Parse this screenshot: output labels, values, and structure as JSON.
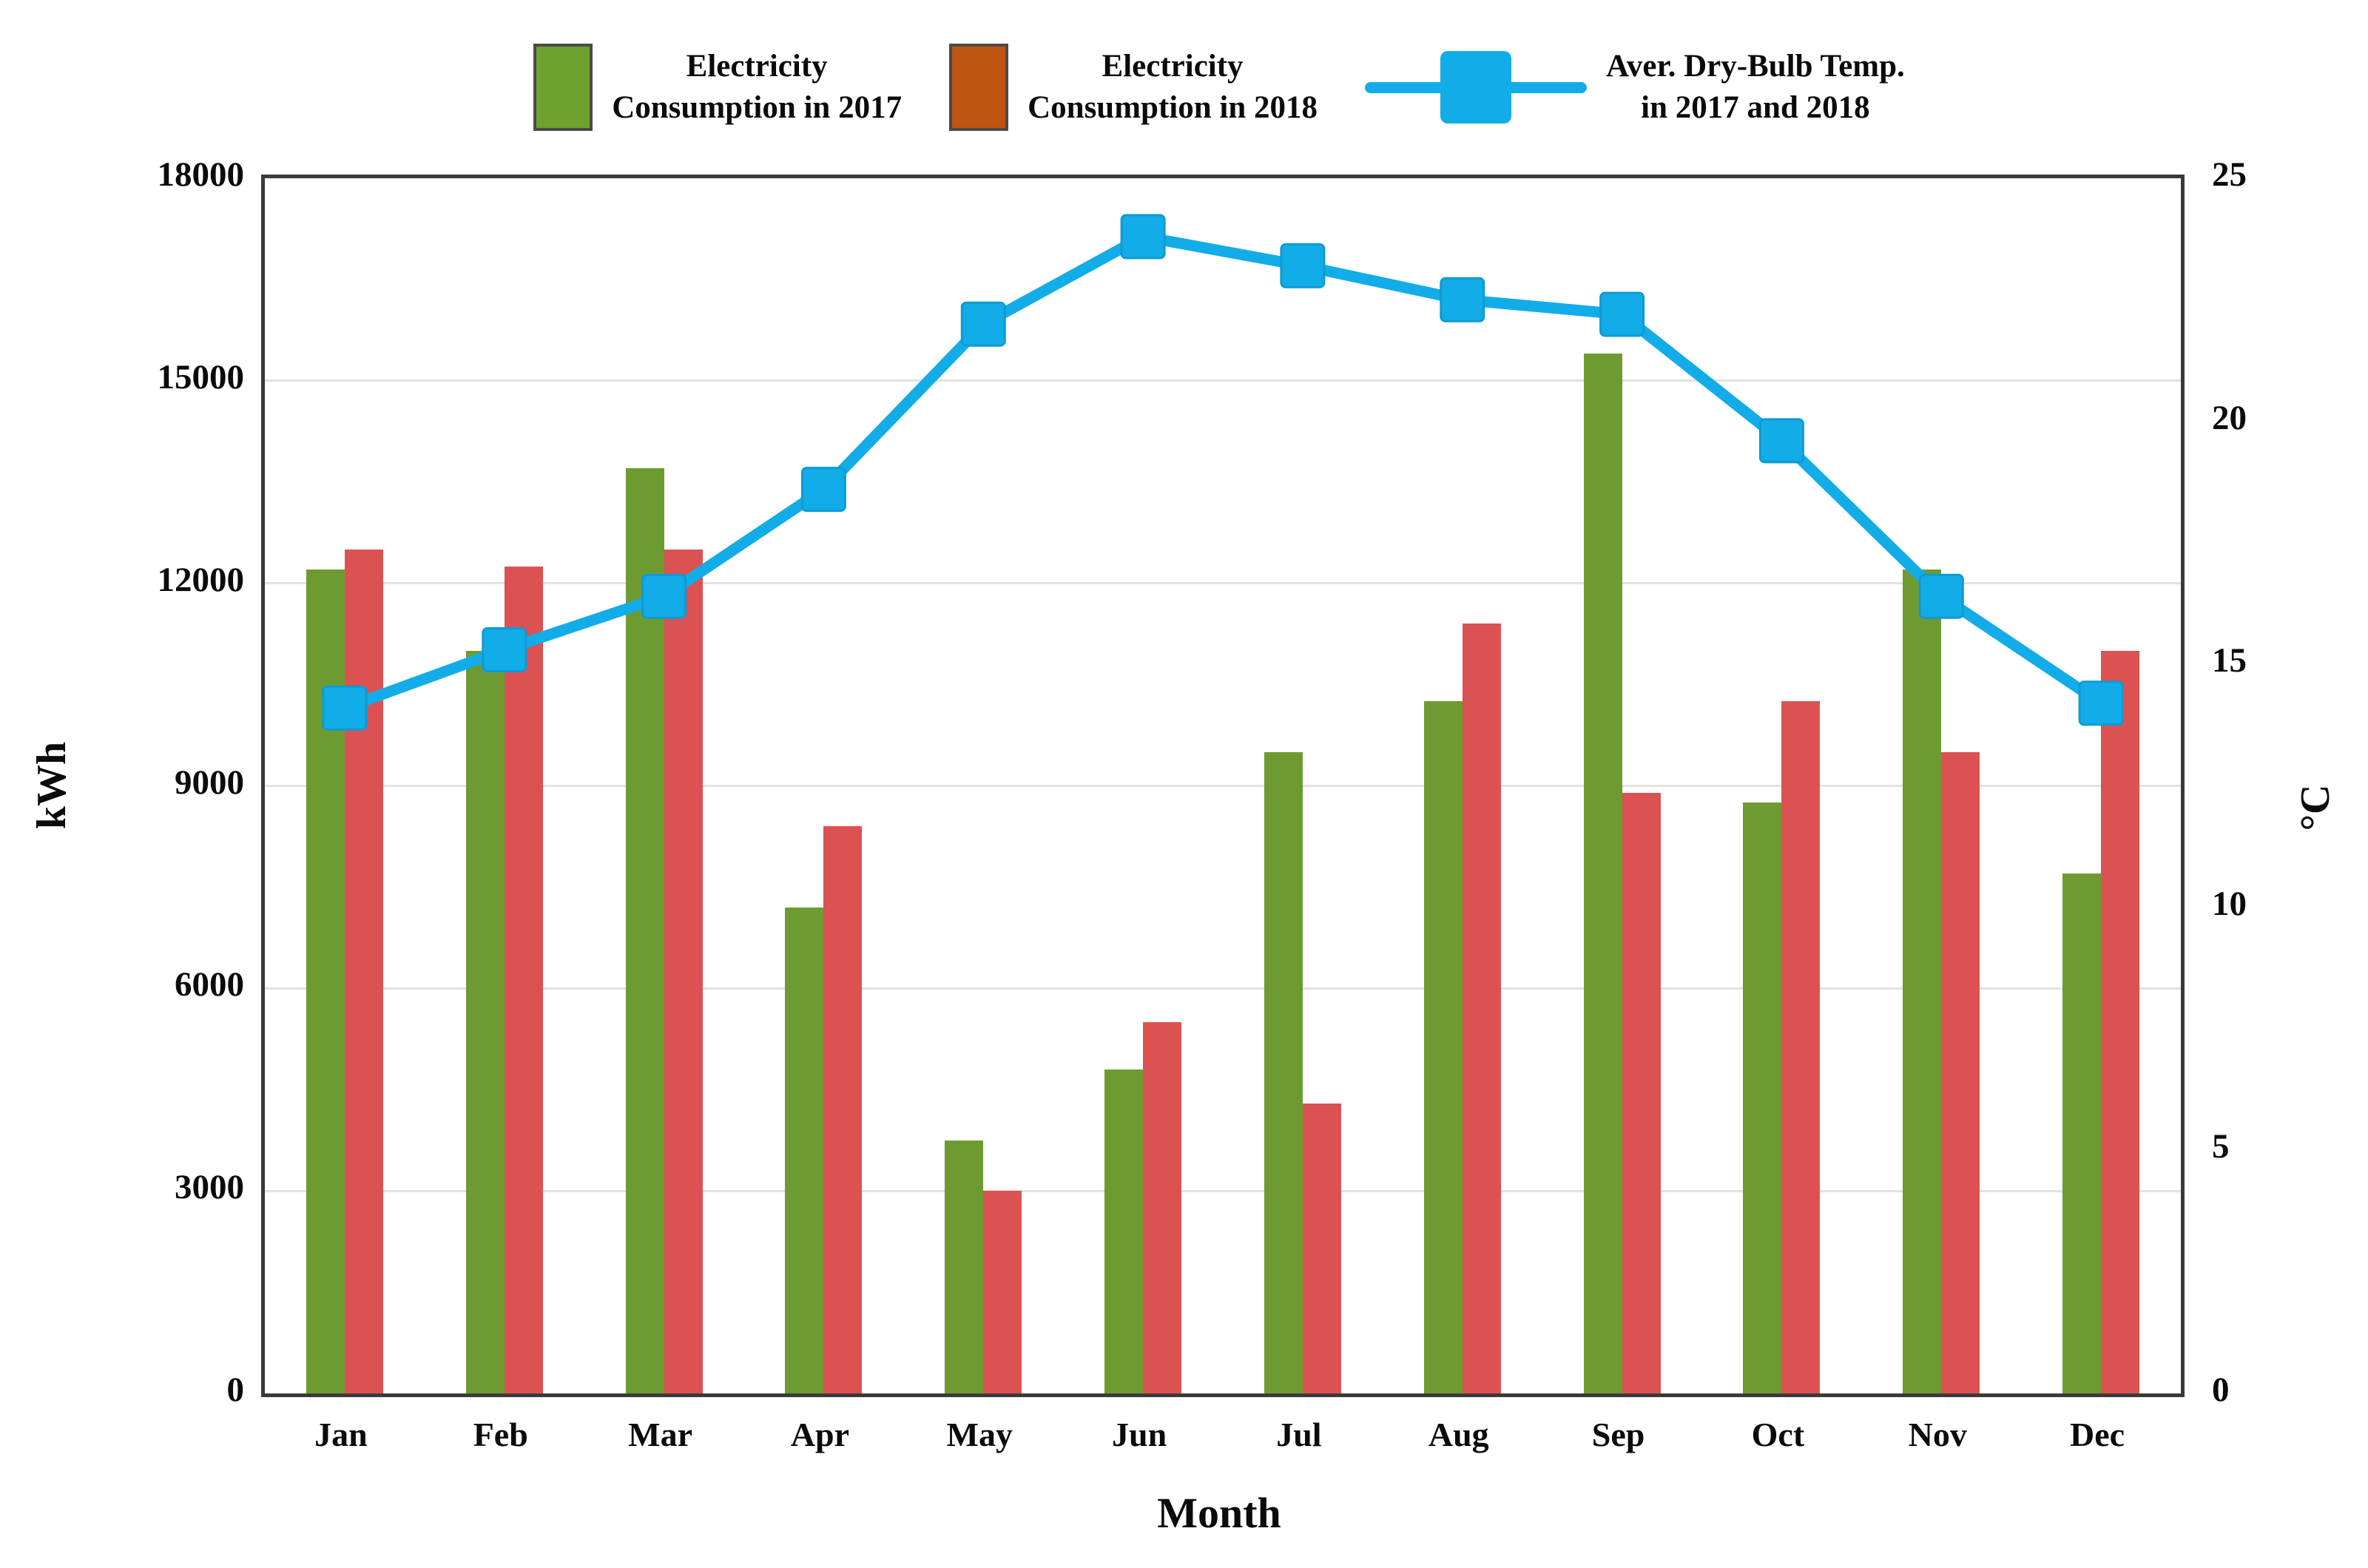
{
  "legend": {
    "items": [
      {
        "label_line1": "Electricity",
        "label_line2": "Consumption in 2017",
        "swatch_color": "#6FA12F",
        "kind": "bar-swatch"
      },
      {
        "label_line1": "Electricity",
        "label_line2": "Consumption in 2018",
        "swatch_color": "#C05411",
        "kind": "bar-swatch"
      },
      {
        "label_line1": "Aver. Dry-Bulb Temp.",
        "label_line2": "in 2017 and 2018",
        "swatch_color": "#12ACE8",
        "kind": "line-marker"
      }
    ]
  },
  "chart_data": {
    "type": "bar",
    "subtype": "grouped-bars-with-line-overlay",
    "categories": [
      "Jan",
      "Feb",
      "Mar",
      "Apr",
      "May",
      "Jun",
      "Jul",
      "Aug",
      "Sep",
      "Oct",
      "Nov",
      "Dec"
    ],
    "series": [
      {
        "name": "Electricity Consumption in 2017",
        "type": "bar",
        "axis": "left",
        "color": "#6E9B31",
        "values": [
          12200,
          11000,
          13700,
          7200,
          3750,
          4800,
          9500,
          10250,
          15400,
          8750,
          12200,
          7700
        ]
      },
      {
        "name": "Electricity Consumption in 2018",
        "type": "bar",
        "axis": "left",
        "color": "#DC5252",
        "values": [
          12500,
          12250,
          12500,
          8400,
          3000,
          5500,
          4300,
          11400,
          8900,
          10250,
          9500,
          11000
        ]
      },
      {
        "name": "Aver. Dry-Bulb Temp. in 2017 and 2018",
        "type": "line",
        "axis": "right",
        "color": "#12ACE8",
        "marker": "square",
        "values": [
          14.1,
          15.3,
          16.4,
          18.6,
          22.0,
          23.8,
          23.2,
          22.5,
          22.2,
          19.6,
          16.4,
          14.2
        ]
      }
    ],
    "y_left": {
      "label": "kWh",
      "min": 0,
      "max": 18000,
      "step": 3000,
      "ticks": [
        "0",
        "3000",
        "6000",
        "9000",
        "12000",
        "15000",
        "18000"
      ]
    },
    "y_right": {
      "label": "°C",
      "min": 0,
      "max": 25,
      "step": 5,
      "ticks": [
        "0",
        "5",
        "10",
        "15",
        "20",
        "25"
      ]
    },
    "x_axis": {
      "label": "Month"
    },
    "grid": true,
    "legend_position": "top"
  },
  "colors": {
    "bar_2017": "#6E9B31",
    "bar_2018": "#DC5252",
    "line_temp": "#12ACE8",
    "line_marker_edge": "#0D9BD4",
    "legend_swatch_2017": "#6FA12F",
    "legend_swatch_2018": "#C05411",
    "plot_border": "#3a3a3a",
    "gridline": "#e2e2e2",
    "text": "#0b0b0b"
  }
}
